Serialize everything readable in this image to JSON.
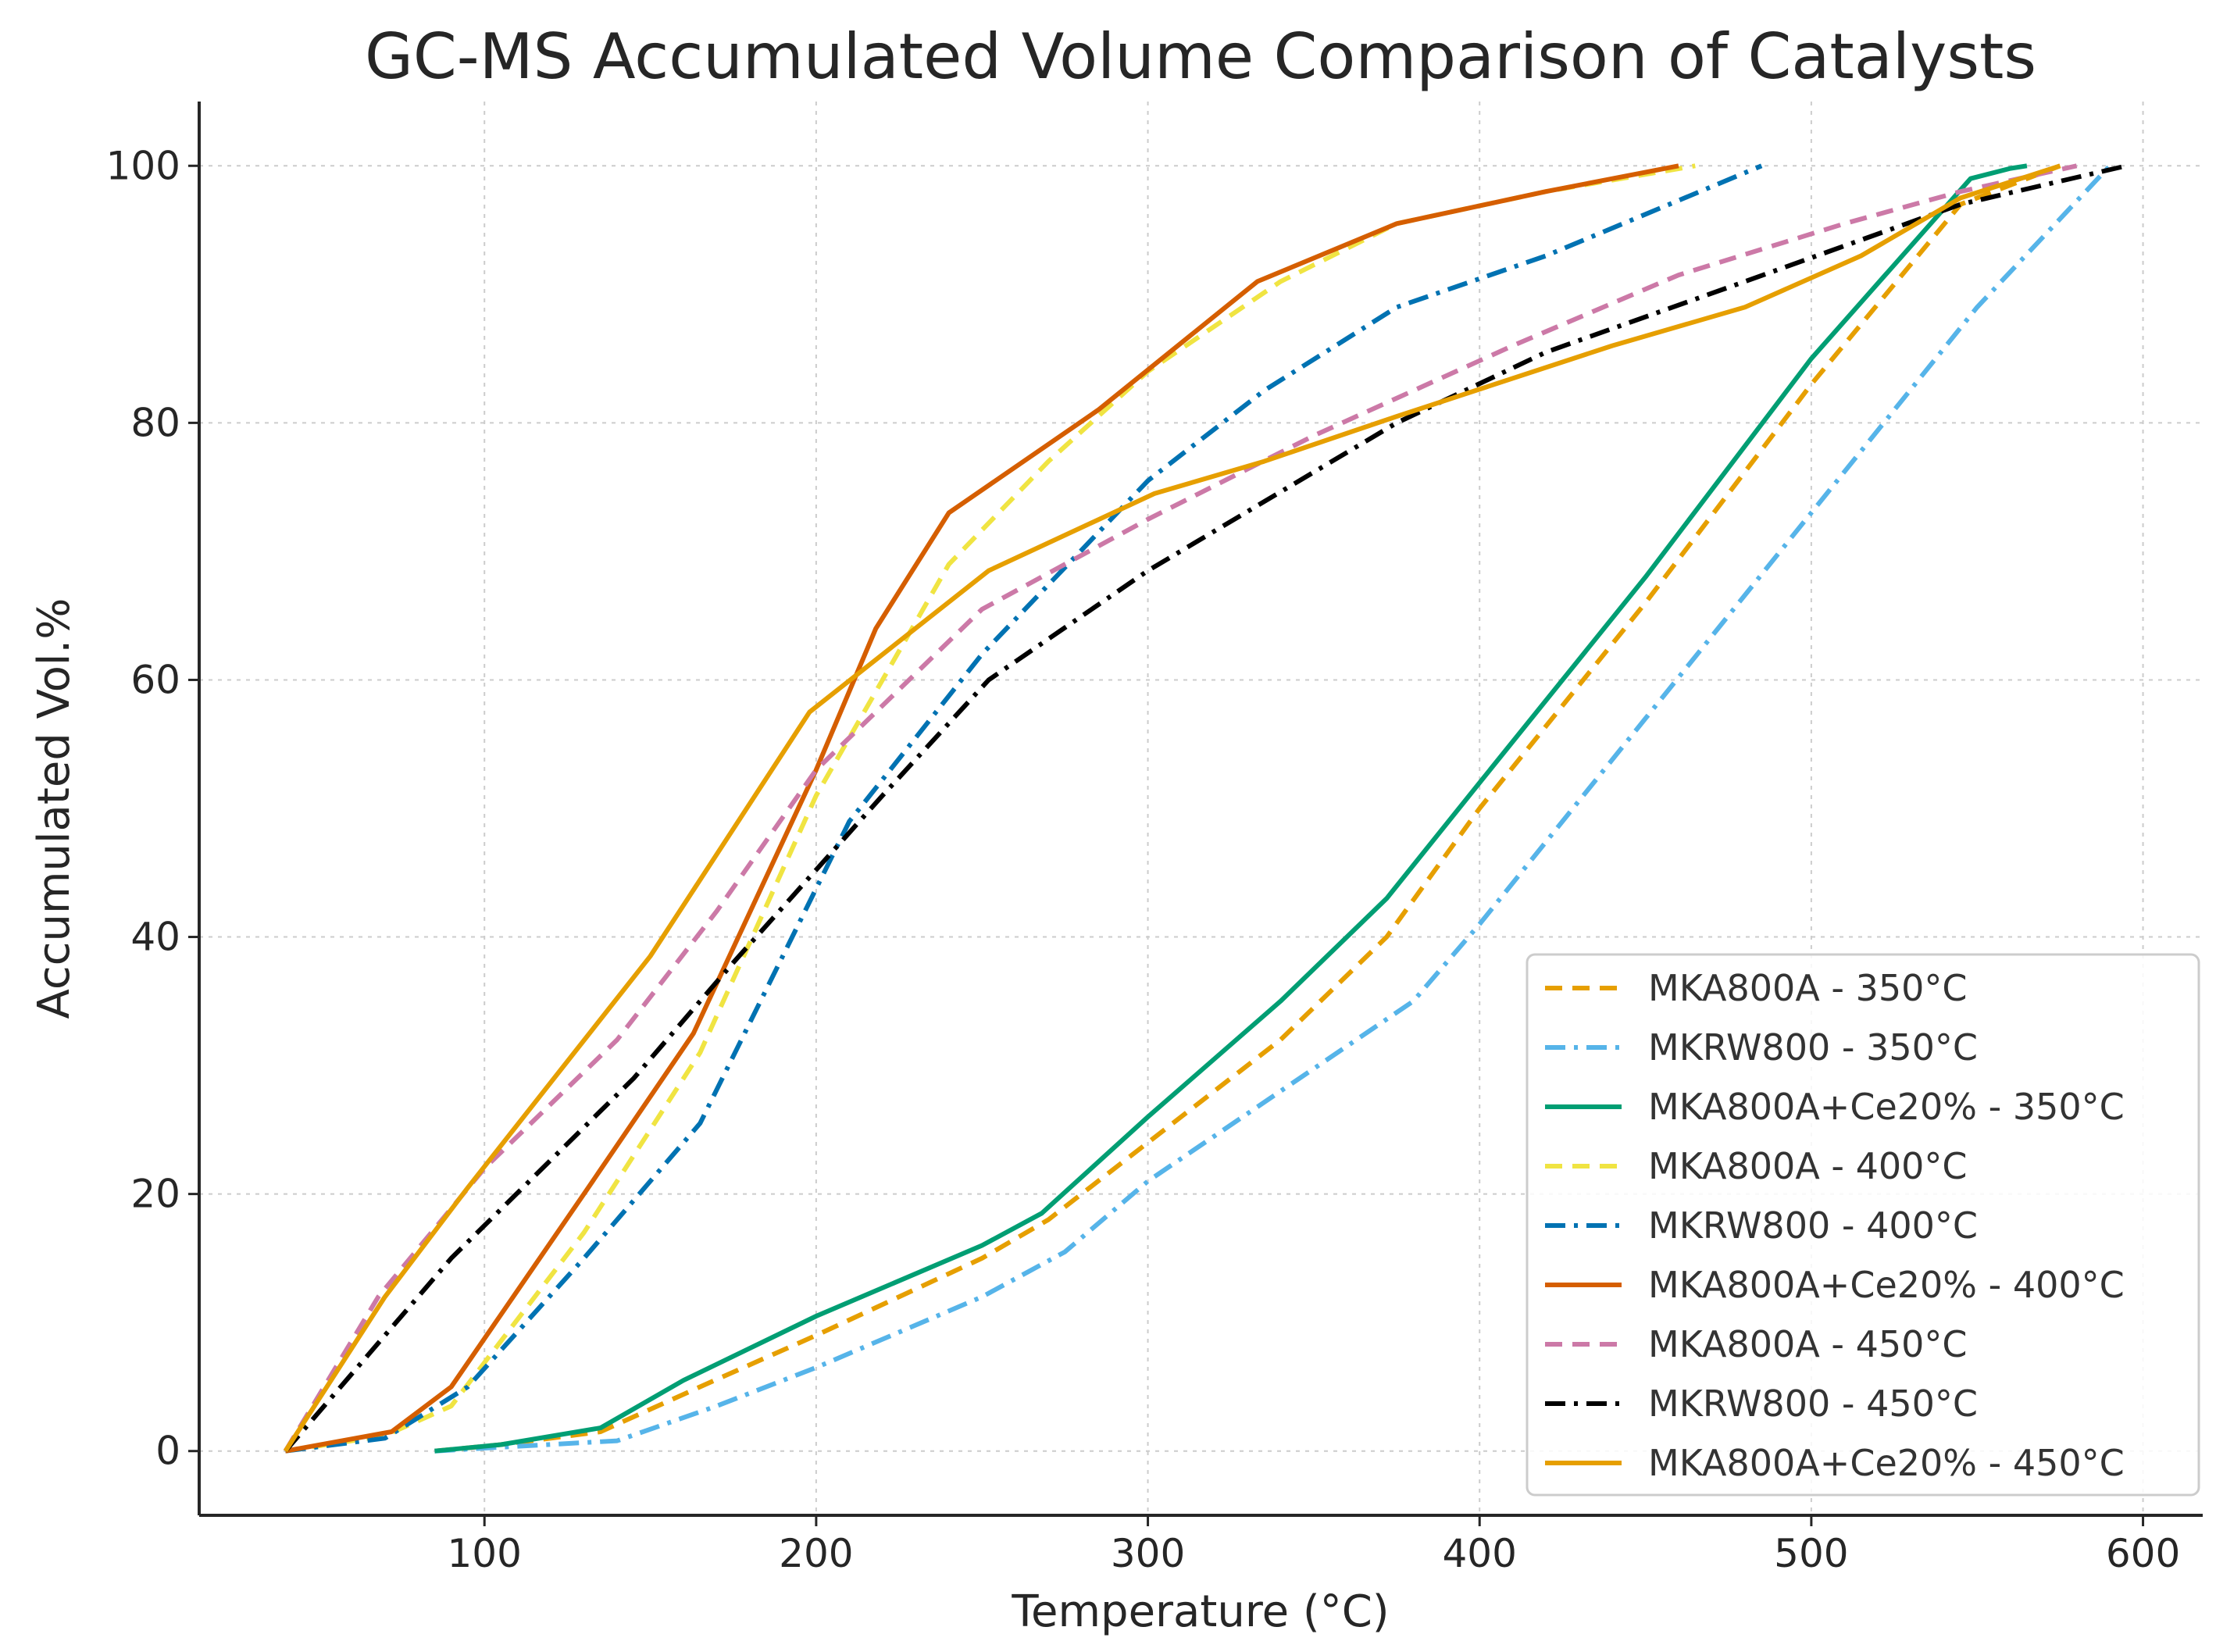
{
  "chart_data": {
    "type": "line",
    "title": "GC-MS Accumulated Volume Comparison of Catalysts",
    "xlabel": "Temperature (°C)",
    "ylabel": "Accumulated Vol.%",
    "xlim": [
      14,
      618
    ],
    "ylim": [
      -5,
      105
    ],
    "xticks": [
      100,
      200,
      300,
      400,
      500,
      600
    ],
    "yticks": [
      0,
      20,
      40,
      60,
      80,
      100
    ],
    "grid": true,
    "legend_position": "lower-right",
    "series": [
      {
        "name": "MKA800A - 350°C",
        "color": "#E69F00",
        "style": "dashed",
        "x": [
          85,
          105,
          135,
          165,
          200,
          250,
          270,
          300,
          340,
          372,
          400,
          450,
          500,
          545,
          575
        ],
        "y": [
          0,
          0.5,
          1.5,
          5,
          9,
          15,
          18,
          24,
          32,
          40,
          50,
          66,
          83,
          97,
          100
        ]
      },
      {
        "name": "MKRW800 - 350°C",
        "color": "#56B4E9",
        "style": "dashdot",
        "x": [
          85,
          105,
          140,
          170,
          200,
          250,
          275,
          300,
          340,
          380,
          400,
          450,
          500,
          550,
          590
        ],
        "y": [
          0,
          0.3,
          0.8,
          3.5,
          6.5,
          12,
          15.5,
          21,
          28,
          35,
          41,
          57,
          73,
          89,
          100
        ]
      },
      {
        "name": "MKA800A+Ce20% - 350°C",
        "color": "#009E73",
        "style": "solid",
        "x": [
          85,
          105,
          135,
          160,
          200,
          250,
          268,
          300,
          340,
          372,
          400,
          450,
          500,
          548,
          560,
          565
        ],
        "y": [
          0,
          0.5,
          1.8,
          5.5,
          10.5,
          16,
          18.5,
          26,
          35,
          43,
          52,
          68,
          85,
          99,
          99.8,
          100
        ]
      },
      {
        "name": "MKA800A - 400°C",
        "color": "#F0E442",
        "style": "dashed",
        "x": [
          40,
          70,
          90,
          130,
          165,
          200,
          220,
          240,
          270,
          300,
          340,
          375,
          420,
          465
        ],
        "y": [
          0,
          1.2,
          3.5,
          17,
          31,
          51,
          60,
          69,
          77,
          84,
          91,
          95.5,
          98,
          100
        ]
      },
      {
        "name": "MKRW800 - 400°C",
        "color": "#0072B2",
        "style": "dashdot",
        "x": [
          40,
          70,
          95,
          130,
          165,
          210,
          250,
          300,
          335,
          375,
          420,
          485
        ],
        "y": [
          0,
          1,
          5,
          15,
          25.5,
          49,
          62,
          75.5,
          82.5,
          89,
          93,
          100
        ]
      },
      {
        "name": "MKA800A+Ce20% - 400°C",
        "color": "#D55E00",
        "style": "solid",
        "x": [
          40,
          72,
          90,
          130,
          163,
          200,
          218,
          240,
          285,
          333,
          375,
          420,
          460
        ],
        "y": [
          0,
          1.5,
          5,
          20,
          32.5,
          53,
          64,
          73,
          81,
          91,
          95.5,
          98,
          100
        ]
      },
      {
        "name": "MKA800A - 450°C",
        "color": "#CC79A7",
        "style": "dashed",
        "x": [
          40,
          68,
          100,
          140,
          170,
          200,
          250,
          300,
          350,
          410,
          460,
          510,
          545,
          580
        ],
        "y": [
          0,
          12,
          22,
          32,
          42,
          53,
          65.5,
          72.5,
          79,
          86,
          91.5,
          95.5,
          98,
          100
        ]
      },
      {
        "name": "MKRW800 - 450°C",
        "color": "#000000",
        "style": "dashdot",
        "x": [
          40,
          90,
          145,
          175,
          220,
          252,
          300,
          375,
          420,
          480,
          545,
          595
        ],
        "y": [
          0,
          15,
          29,
          38,
          51,
          60,
          68.5,
          80,
          85.5,
          91,
          97,
          100
        ]
      },
      {
        "name": "MKA800A+Ce20% - 450°C",
        "color": "#E69F00",
        "style": "solid",
        "x": [
          40,
          70,
          95,
          150,
          198,
          252,
          302,
          335,
          375,
          440,
          480,
          515,
          545,
          575
        ],
        "y": [
          0,
          12,
          20.5,
          38.5,
          57.5,
          68.5,
          74.5,
          77,
          80.5,
          86,
          89,
          93,
          97.5,
          100
        ]
      }
    ]
  }
}
